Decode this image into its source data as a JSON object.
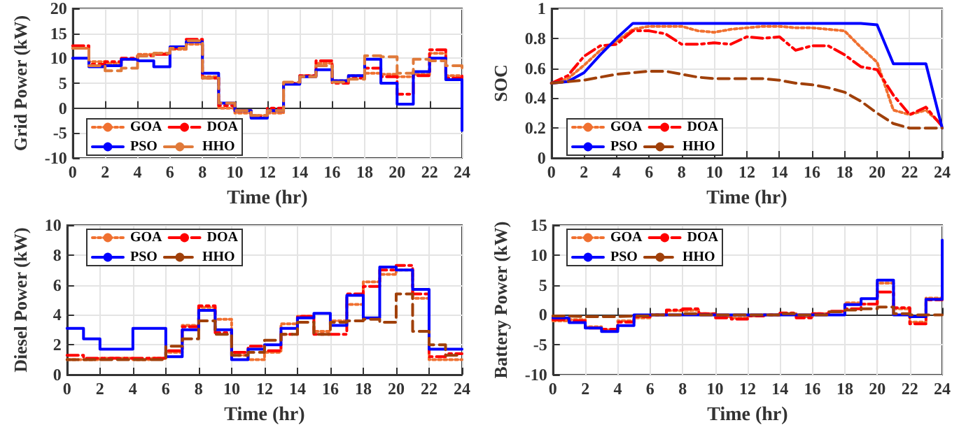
{
  "chart_data": [
    {
      "type": "step",
      "xlabel": "Time (hr)",
      "ylabel": "Grid Power (kW)",
      "x": [
        0,
        1,
        2,
        3,
        4,
        5,
        6,
        7,
        8,
        9,
        10,
        11,
        12,
        13,
        14,
        15,
        16,
        17,
        18,
        19,
        20,
        21,
        22,
        23,
        24
      ],
      "xlim": [
        0,
        24
      ],
      "xticks": [
        0,
        2,
        4,
        6,
        8,
        10,
        12,
        14,
        16,
        18,
        20,
        22,
        24
      ],
      "ylim": [
        -10,
        20
      ],
      "yticks": [
        -10,
        -5,
        0,
        5,
        10,
        15,
        20
      ],
      "grid": true,
      "legend": "bottom left",
      "series": [
        {
          "name": "GOA",
          "color": "#f07030",
          "line_style": "dotted",
          "values": [
            12,
            9.3,
            9,
            9.8,
            10.8,
            11,
            11.8,
            12.8,
            6.3,
            0,
            -1,
            -1.5,
            -1,
            5,
            6.5,
            9,
            5.5,
            6.5,
            7,
            6.8,
            6.3,
            6.8,
            11,
            6.5,
            6.5
          ]
        },
        {
          "name": "DOA",
          "color": "#ff0000",
          "line_style": "dashdot",
          "values": [
            12.5,
            8.8,
            9.3,
            10,
            10.5,
            10.8,
            12,
            13.8,
            6,
            0.5,
            -0.5,
            -1.8,
            0,
            5,
            6.5,
            9.5,
            5,
            6,
            8,
            6.3,
            2.8,
            6.5,
            11.7,
            6,
            7
          ]
        },
        {
          "name": "PSO",
          "color": "#0000ff",
          "line_style": "solid",
          "values": [
            10,
            8.3,
            8.5,
            9.8,
            9.5,
            8.3,
            12.3,
            13.3,
            7,
            1,
            -0.5,
            -2,
            -0.5,
            4.8,
            6.3,
            7.7,
            5.5,
            6.5,
            9.8,
            5,
            0.8,
            7.3,
            10,
            5.7,
            -4.5
          ]
        },
        {
          "name": "HHO",
          "color": "#e07a3a",
          "line_style": "dashed",
          "values": [
            12,
            8.5,
            7.5,
            8,
            10.5,
            11,
            12,
            13.5,
            6,
            1,
            -0.5,
            -1.5,
            -0.5,
            5.2,
            6.3,
            8.5,
            5.2,
            5.8,
            10.5,
            10.3,
            7,
            9.8,
            9.5,
            8.5,
            7
          ]
        }
      ]
    },
    {
      "type": "line",
      "xlabel": "Time (hr)",
      "ylabel": "SOC",
      "x": [
        0,
        1,
        2,
        3,
        4,
        5,
        6,
        7,
        8,
        9,
        10,
        11,
        12,
        13,
        14,
        15,
        16,
        17,
        18,
        19,
        20,
        21,
        22,
        23,
        24
      ],
      "xlim": [
        0,
        24
      ],
      "xticks": [
        0,
        2,
        4,
        6,
        8,
        10,
        12,
        14,
        16,
        18,
        20,
        22,
        24
      ],
      "ylim": [
        0,
        1
      ],
      "yticks": [
        0,
        0.2,
        0.4,
        0.6,
        0.8,
        1
      ],
      "grid": true,
      "legend": "bottom left",
      "series": [
        {
          "name": "GOA",
          "color": "#f07030",
          "line_style": "dotted",
          "values": [
            0.5,
            0.53,
            0.62,
            0.72,
            0.78,
            0.86,
            0.88,
            0.88,
            0.88,
            0.85,
            0.84,
            0.86,
            0.87,
            0.88,
            0.88,
            0.87,
            0.87,
            0.86,
            0.85,
            0.74,
            0.64,
            0.32,
            0.29,
            0.32,
            0.22
          ]
        },
        {
          "name": "DOA",
          "color": "#ff0000",
          "line_style": "dashdot",
          "values": [
            0.5,
            0.55,
            0.68,
            0.75,
            0.76,
            0.85,
            0.85,
            0.83,
            0.76,
            0.76,
            0.77,
            0.76,
            0.81,
            0.8,
            0.81,
            0.72,
            0.75,
            0.75,
            0.69,
            0.61,
            0.59,
            0.42,
            0.29,
            0.34,
            0.21
          ]
        },
        {
          "name": "PSO",
          "color": "#0000ff",
          "line_style": "solid",
          "values": [
            0.5,
            0.51,
            0.57,
            0.69,
            0.8,
            0.9,
            0.9,
            0.9,
            0.9,
            0.9,
            0.9,
            0.9,
            0.9,
            0.9,
            0.9,
            0.9,
            0.9,
            0.9,
            0.9,
            0.9,
            0.89,
            0.63,
            0.63,
            0.63,
            0.2
          ]
        },
        {
          "name": "HHO",
          "color": "#a0400a",
          "line_style": "dashed",
          "values": [
            0.5,
            0.51,
            0.52,
            0.54,
            0.56,
            0.57,
            0.58,
            0.58,
            0.56,
            0.54,
            0.53,
            0.53,
            0.53,
            0.53,
            0.52,
            0.5,
            0.49,
            0.47,
            0.44,
            0.38,
            0.3,
            0.23,
            0.2,
            0.2,
            0.2
          ]
        }
      ]
    },
    {
      "type": "step",
      "xlabel": "Time (hr)",
      "ylabel": "Diesel Power (kW)",
      "x": [
        0,
        1,
        2,
        3,
        4,
        5,
        6,
        7,
        8,
        9,
        10,
        11,
        12,
        13,
        14,
        15,
        16,
        17,
        18,
        19,
        20,
        21,
        22,
        23,
        24
      ],
      "xlim": [
        0,
        24
      ],
      "xticks": [
        0,
        2,
        4,
        6,
        8,
        10,
        12,
        14,
        16,
        18,
        20,
        22,
        24
      ],
      "ylim": [
        0,
        10
      ],
      "yticks": [
        0,
        2,
        4,
        6,
        8,
        10
      ],
      "grid": true,
      "legend": "top left",
      "series": [
        {
          "name": "GOA",
          "color": "#f07030",
          "line_style": "dotted",
          "values": [
            1,
            1,
            1.1,
            1.1,
            1,
            1.1,
            1.5,
            3.3,
            4.5,
            3.7,
            1.3,
            1,
            1.5,
            3.4,
            3.9,
            2.9,
            3.6,
            4.7,
            6.2,
            6.7,
            7,
            5.1,
            1,
            1,
            1
          ]
        },
        {
          "name": "DOA",
          "color": "#ff0000",
          "line_style": "dashdot",
          "values": [
            1.3,
            1.1,
            1.1,
            1.1,
            1.1,
            1.1,
            1.6,
            3.2,
            4.6,
            2.8,
            1.5,
            1.9,
            1.6,
            2.7,
            3.9,
            2.7,
            2.7,
            5.4,
            5.9,
            7,
            7.3,
            5.4,
            1.2,
            1.4,
            1.4
          ]
        },
        {
          "name": "PSO",
          "color": "#0000ff",
          "line_style": "solid",
          "values": [
            3.1,
            2.4,
            1.7,
            1.7,
            3.1,
            3.1,
            1.2,
            3,
            4.3,
            3,
            1,
            1.7,
            2,
            3.1,
            3.8,
            4.1,
            3.3,
            5.3,
            3.8,
            7.2,
            7,
            5.7,
            1.7,
            1.7,
            1.7
          ]
        },
        {
          "name": "HHO",
          "color": "#a0400a",
          "line_style": "dashed",
          "values": [
            1,
            1,
            1,
            1,
            1,
            1,
            1.9,
            2.4,
            3.6,
            2.7,
            1.3,
            1.5,
            2.3,
            2.7,
            3.5,
            2.7,
            3.5,
            3.6,
            3.7,
            3.5,
            5.4,
            2.9,
            2,
            1.3,
            1.3
          ]
        }
      ]
    },
    {
      "type": "step",
      "xlabel": "Time (hr)",
      "ylabel": "Battery Power (kW)",
      "x": [
        0,
        1,
        2,
        3,
        4,
        5,
        6,
        7,
        8,
        9,
        10,
        11,
        12,
        13,
        14,
        15,
        16,
        17,
        18,
        19,
        20,
        21,
        22,
        23,
        24
      ],
      "xlim": [
        0,
        24
      ],
      "xticks": [
        0,
        2,
        4,
        6,
        8,
        10,
        12,
        14,
        16,
        18,
        20,
        22,
        24
      ],
      "ylim": [
        -10,
        15
      ],
      "yticks": [
        -10,
        -5,
        0,
        5,
        10,
        15
      ],
      "grid": true,
      "legend": "top left",
      "series": [
        {
          "name": "GOA",
          "color": "#f07030",
          "line_style": "dotted",
          "values": [
            -1,
            -0.8,
            -2,
            -2.5,
            -1,
            -0.5,
            0,
            0.7,
            0.8,
            0.2,
            -0.3,
            -0.5,
            -0.2,
            0,
            0.2,
            -0.3,
            0.2,
            0.5,
            2,
            1.8,
            5.3,
            1,
            -1.2,
            2.8,
            2.8
          ]
        },
        {
          "name": "DOA",
          "color": "#ff0000",
          "line_style": "dashdot",
          "values": [
            -0.8,
            -1,
            -2.2,
            -2.4,
            -1.2,
            -0.3,
            0,
            0.8,
            1,
            0.2,
            -0.5,
            -0.7,
            -0.2,
            0,
            0.3,
            -0.5,
            0.2,
            0.6,
            1,
            1.8,
            3.8,
            1.2,
            -1.5,
            2.5,
            2.5
          ]
        },
        {
          "name": "PSO",
          "color": "#0000ff",
          "line_style": "solid",
          "values": [
            -0.5,
            -1.3,
            -2.2,
            -2.8,
            -1.8,
            0,
            0,
            0,
            0,
            0,
            0,
            0,
            0,
            0,
            0,
            0,
            0,
            0,
            1.7,
            2.7,
            5.8,
            0,
            -0.3,
            2.6,
            12.5
          ]
        },
        {
          "name": "HHO",
          "color": "#a0400a",
          "line_style": "dashed",
          "values": [
            -0.2,
            -0.3,
            -0.3,
            -0.3,
            -0.2,
            -0.2,
            0,
            0,
            0.2,
            0,
            0,
            0,
            0,
            0,
            0.2,
            0,
            0,
            0.5,
            0.8,
            1,
            1.3,
            0.2,
            0,
            0,
            0
          ]
        }
      ]
    }
  ]
}
